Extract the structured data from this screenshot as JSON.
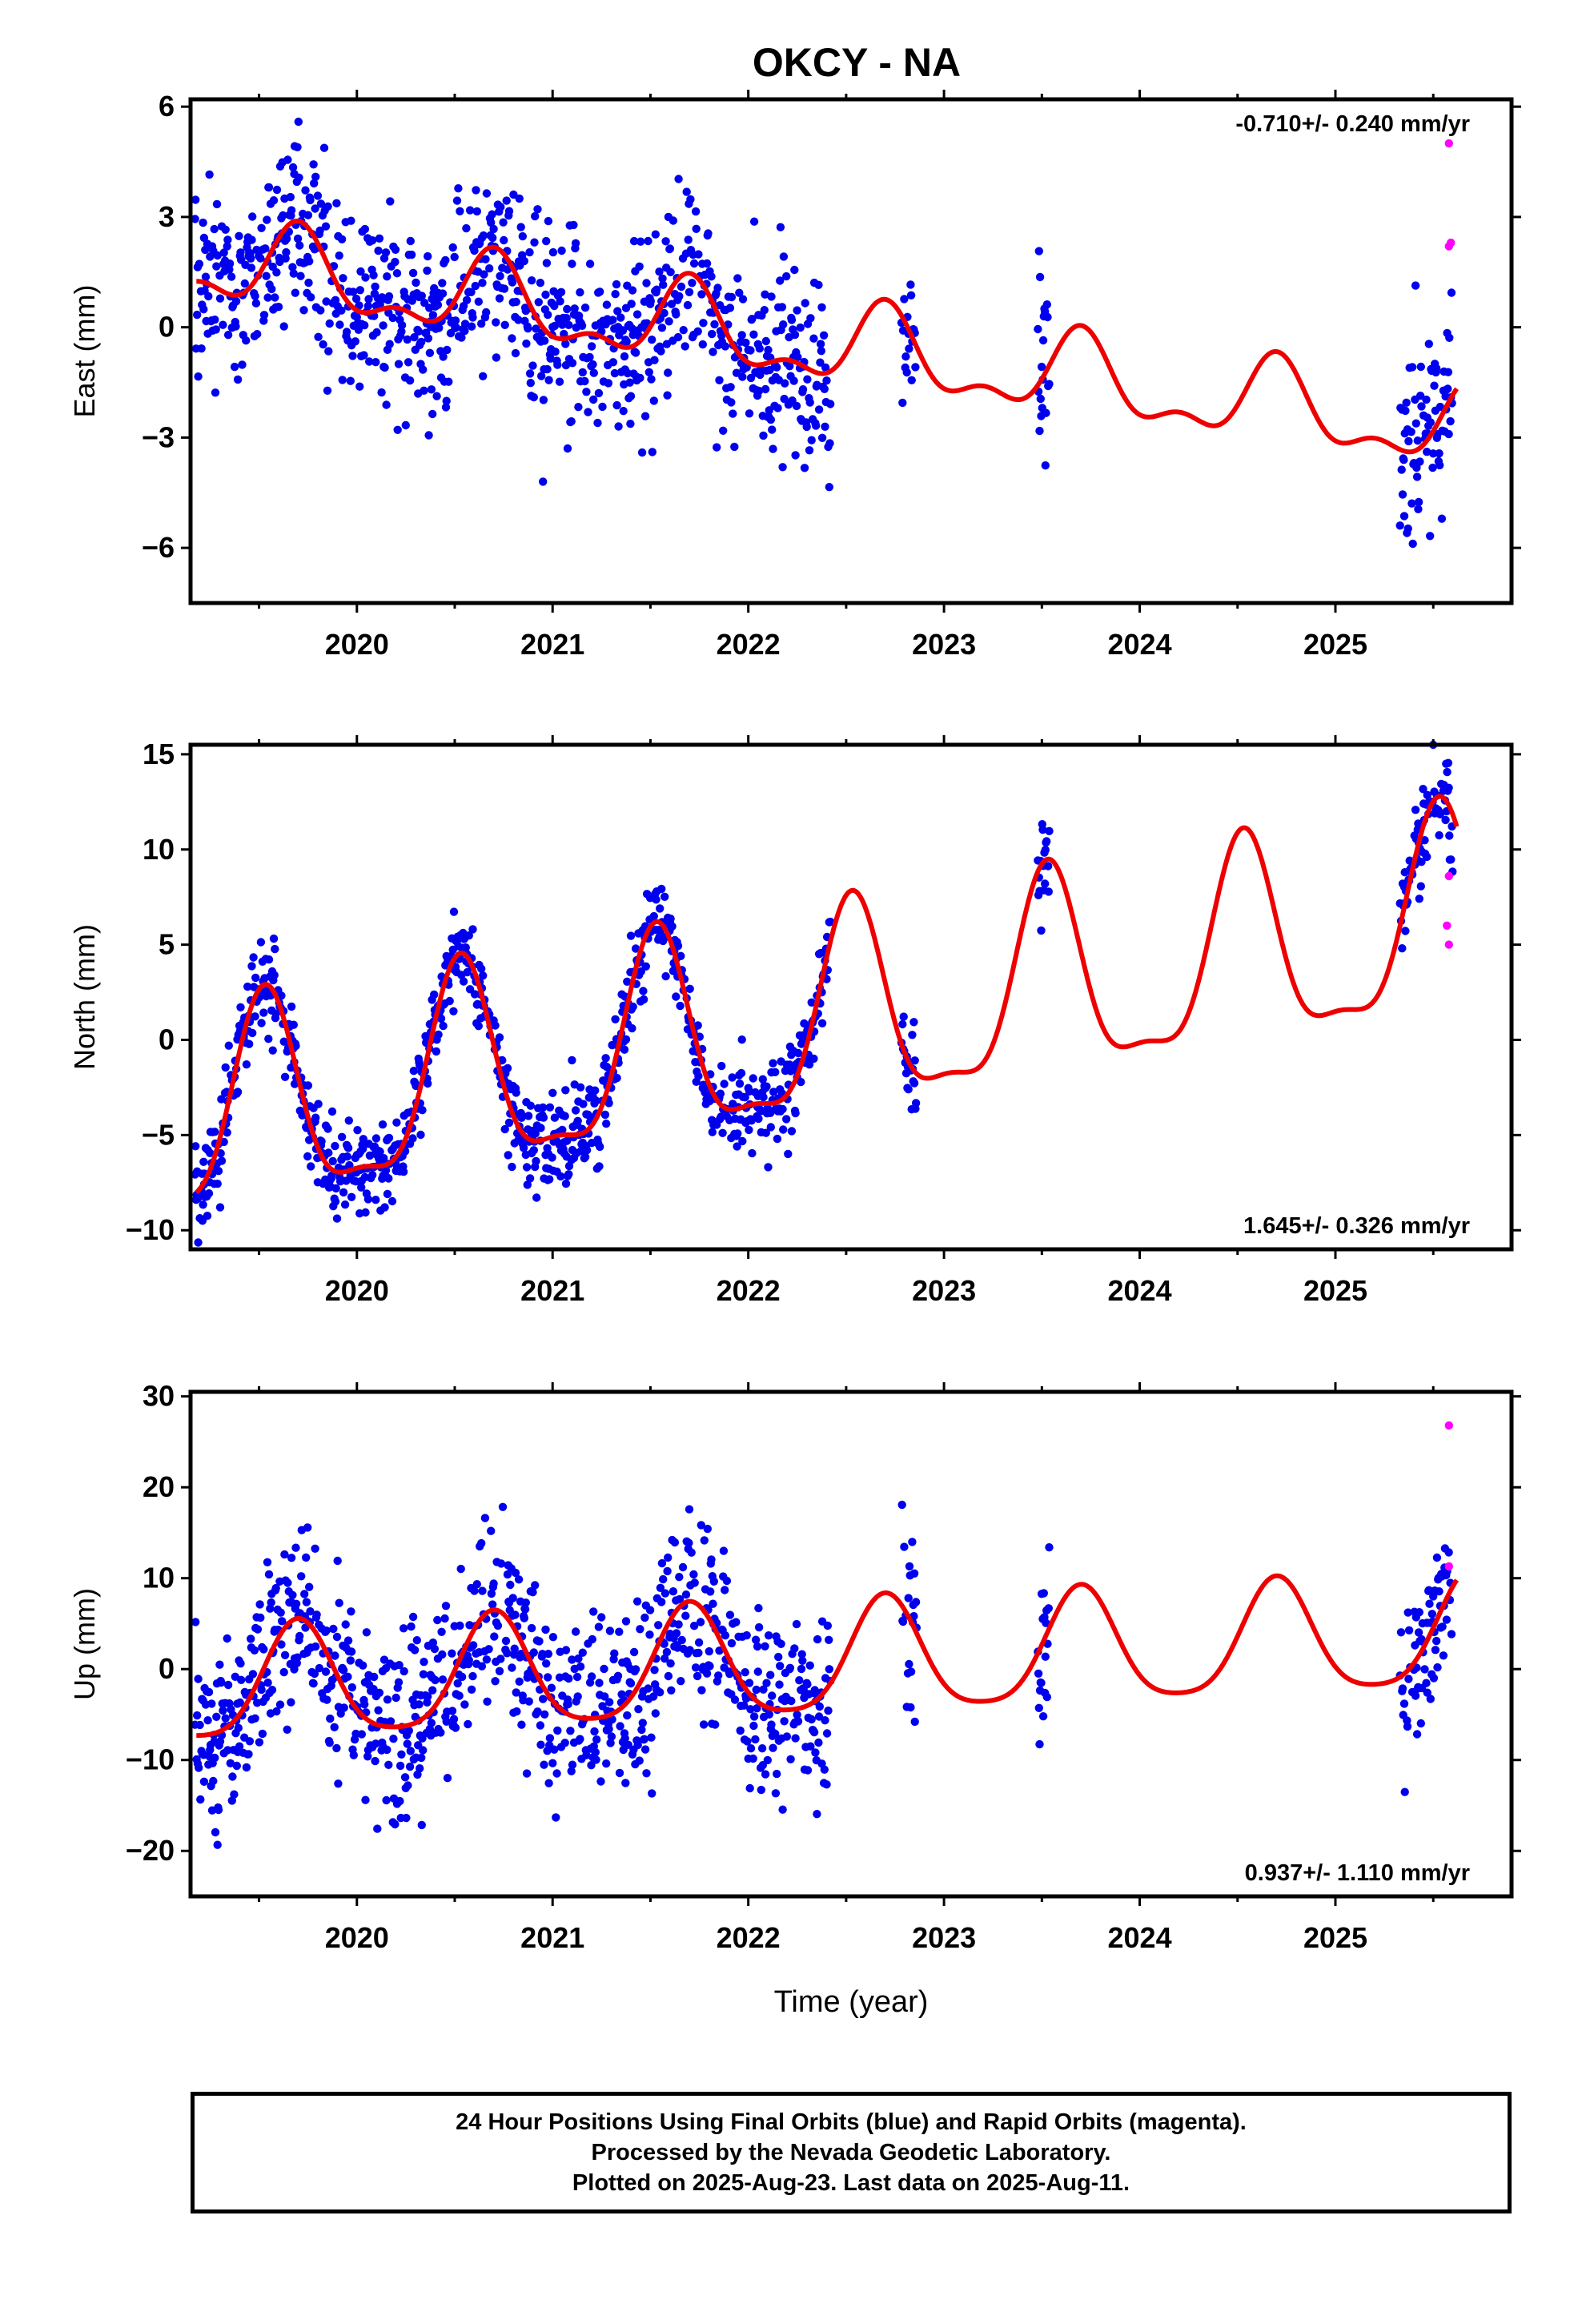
{
  "title": "OKCY - NA",
  "xlabel": "Time (year)",
  "colors": {
    "final": "#0000ee",
    "rapid": "#ff00ff",
    "model": "#ee0000"
  },
  "footer": {
    "line1": "24 Hour Positions Using Final Orbits (blue) and Rapid Orbits (magenta).",
    "line2": "Processed by the Nevada Geodetic Laboratory.",
    "line3": "Plotted on 2025-Aug-23. Last data on 2025-Aug-11."
  },
  "chart_data": [
    {
      "type": "scatter",
      "component": "east",
      "ylabel": "East (mm)",
      "ylim": [
        -7.5,
        6.2
      ],
      "yticks": [
        -6,
        -3,
        0,
        3,
        6
      ],
      "xlim": [
        2019.15,
        2025.9
      ],
      "xticks": [
        2020,
        2021,
        2022,
        2023,
        2024,
        2025
      ],
      "rate": "-0.710+/- 0.240 mm/yr",
      "rate_position": "top-right",
      "model": {
        "mean": 0.0,
        "trend": -0.71,
        "annual_amp": 1.0,
        "annual_phase": 0.7,
        "semi_amp": 0.5,
        "semi_phase": 0.2,
        "t0": 2022.5,
        "offset": -0.6
      },
      "noise": 1.3,
      "rapid_points": [
        [
          2025.58,
          5.0
        ],
        [
          2025.58,
          2.2
        ],
        [
          2025.59,
          2.3
        ]
      ]
    },
    {
      "type": "scatter",
      "component": "north",
      "ylabel": "North (mm)",
      "ylim": [
        -11,
        15.5
      ],
      "yticks": [
        -10,
        -5,
        0,
        5,
        10,
        15
      ],
      "xlim": [
        2019.15,
        2025.9
      ],
      "xticks": [
        2020,
        2021,
        2022,
        2023,
        2024,
        2025
      ],
      "rate": "1.645+/- 0.326 mm/yr",
      "rate_position": "bottom-right",
      "model": {
        "mean": 0.0,
        "trend": 1.645,
        "annual_amp": 5.2,
        "annual_phase": 0.53,
        "semi_amp": 1.6,
        "semi_phase": 0.03,
        "t0": 2022.5,
        "offset": 1.0
      },
      "noise": 1.2,
      "rapid_points": [
        [
          2025.58,
          8.6
        ],
        [
          2025.57,
          6.0
        ],
        [
          2025.58,
          5.0
        ]
      ]
    },
    {
      "type": "scatter",
      "component": "up",
      "ylabel": "Up (mm)",
      "ylim": [
        -25,
        30.5
      ],
      "yticks": [
        -20,
        -10,
        0,
        10,
        20,
        30
      ],
      "xlim": [
        2019.15,
        2025.9
      ],
      "xticks": [
        2020,
        2021,
        2022,
        2023,
        2024,
        2025
      ],
      "rate": "0.937+/- 1.110 mm/yr",
      "rate_position": "bottom-right",
      "model": {
        "mean": 0.0,
        "trend": 0.937,
        "annual_amp": 6.2,
        "annual_phase": 0.7,
        "semi_amp": 1.2,
        "semi_phase": 0.2,
        "t0": 2022.5,
        "offset": 0.8
      },
      "noise": 5.0,
      "rapid_points": [
        [
          2025.58,
          26.8
        ],
        [
          2025.58,
          11.3
        ]
      ]
    }
  ]
}
